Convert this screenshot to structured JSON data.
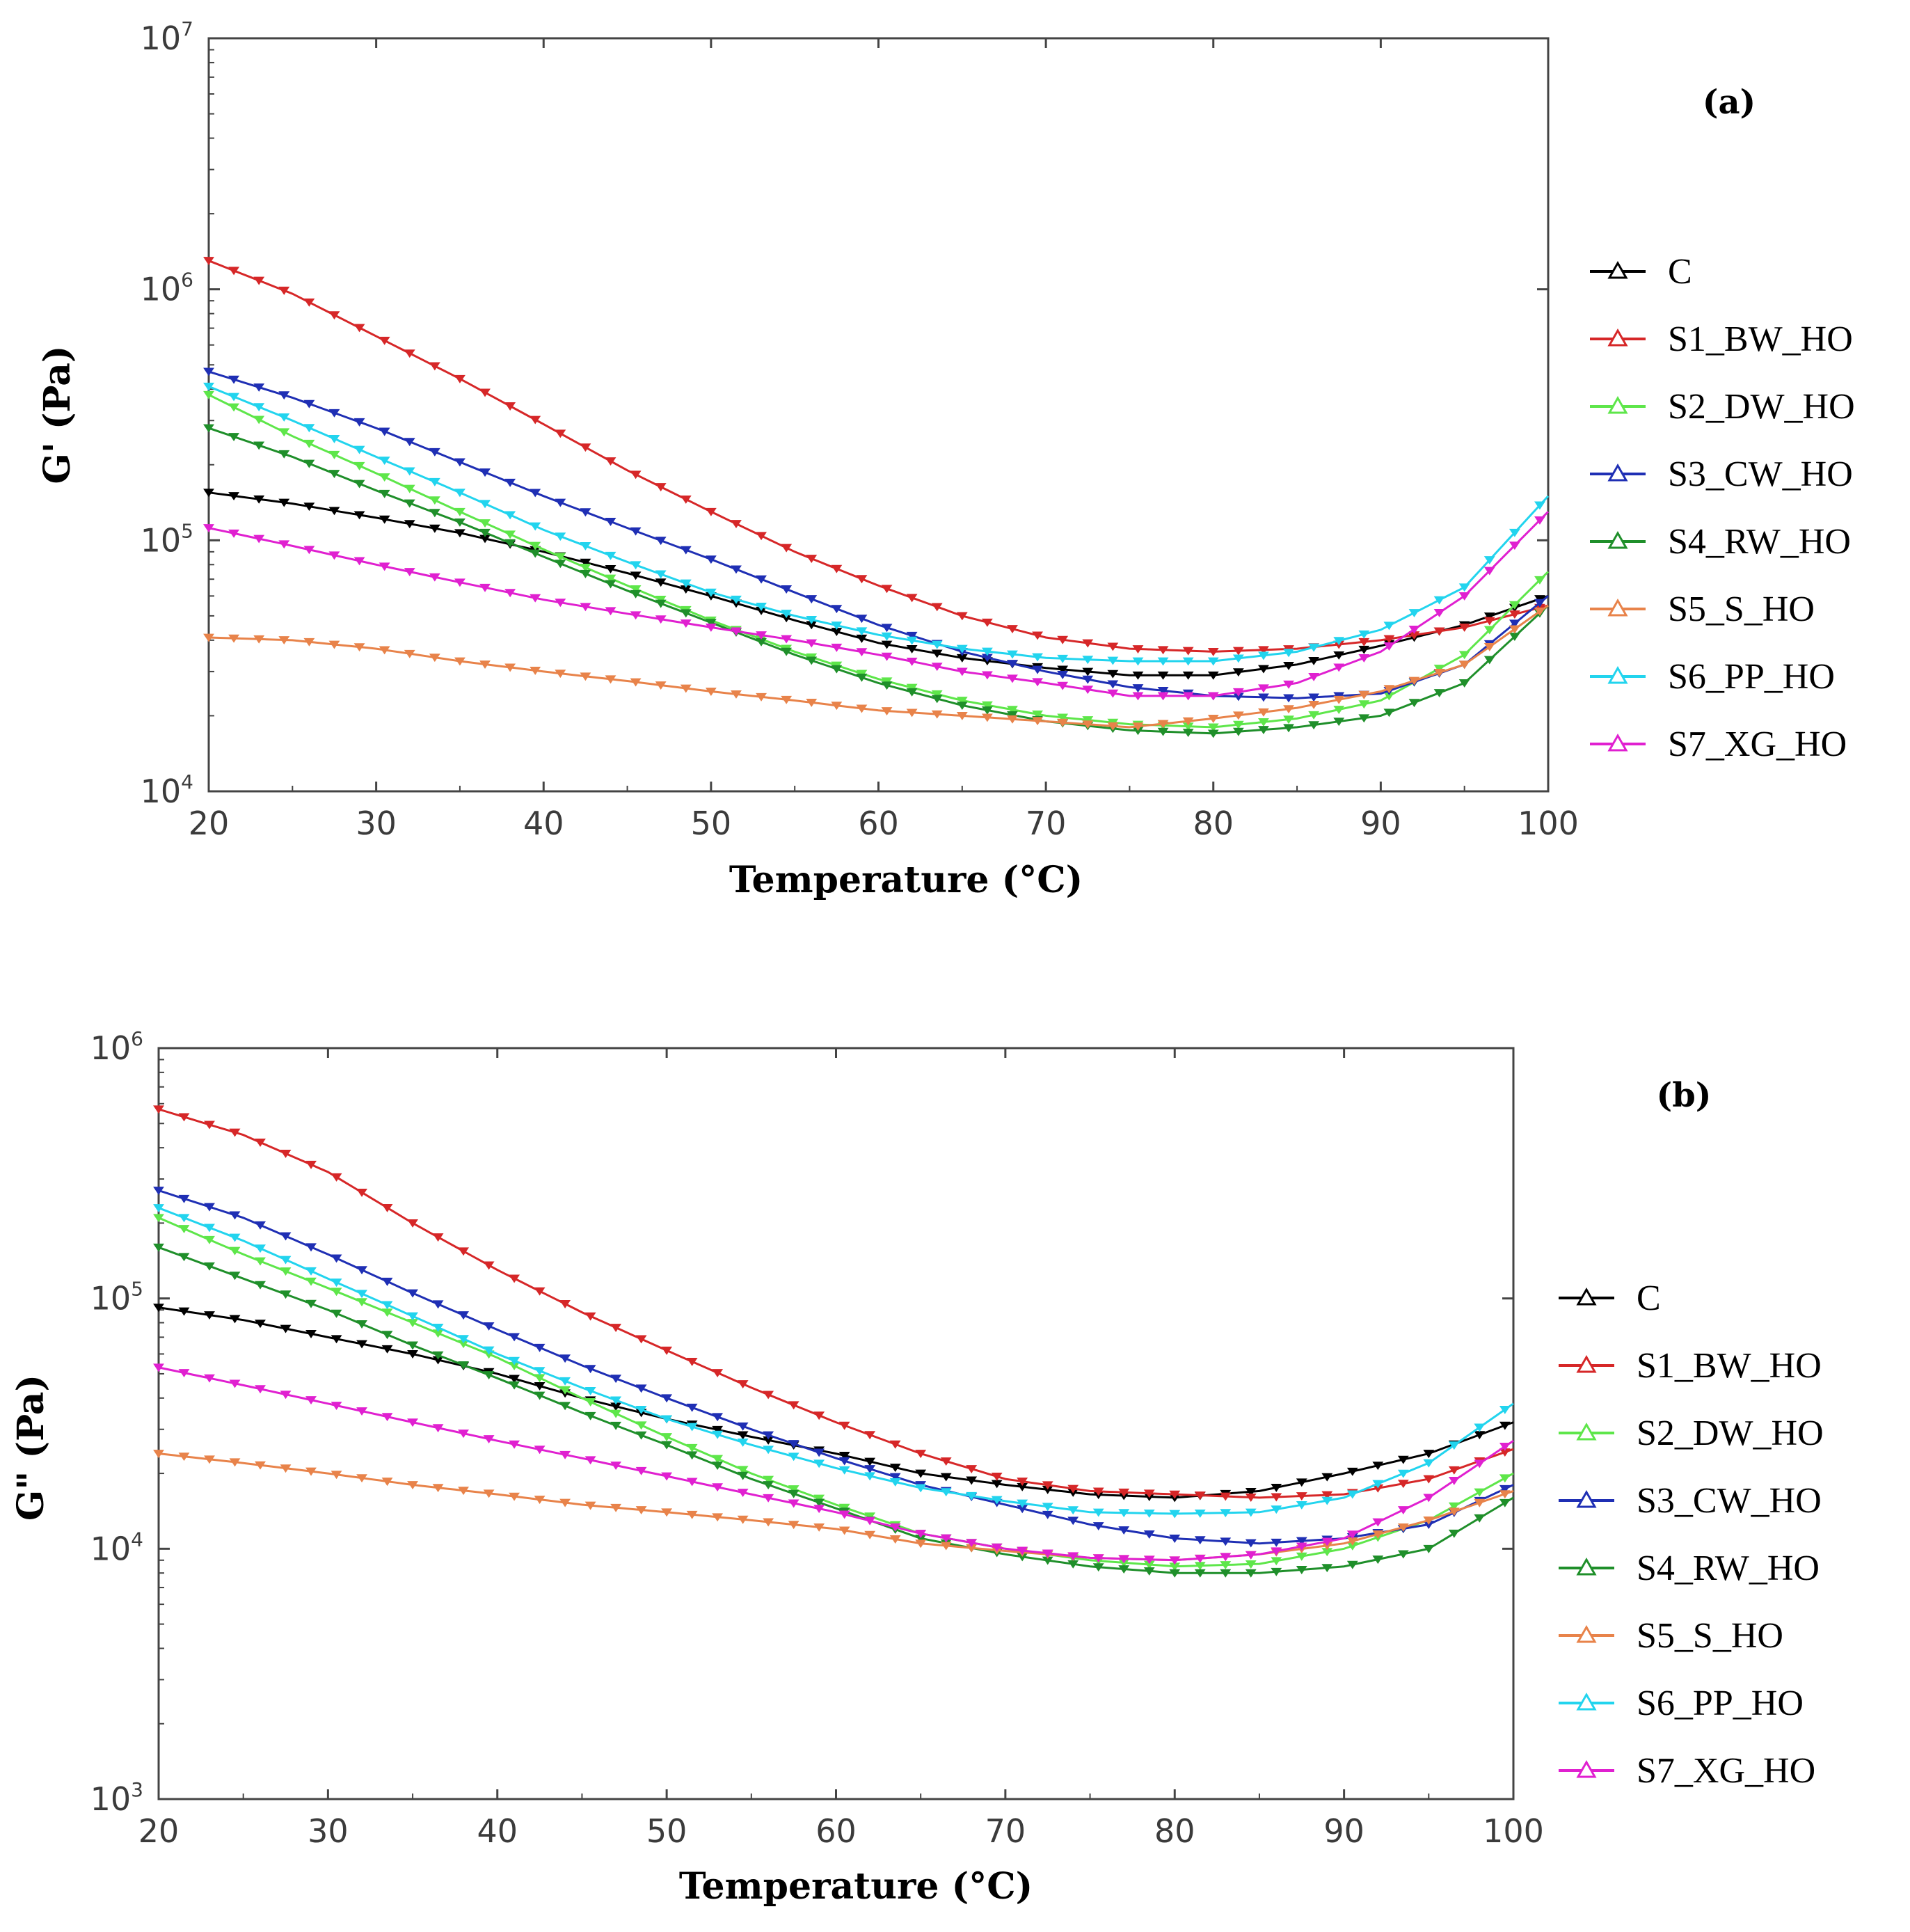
{
  "chart_data": [
    {
      "id": "a",
      "type": "line",
      "panel_label": "(a)",
      "xlabel": "Temperature (°C)",
      "ylabel": "G' (Pa)",
      "xlim": [
        20,
        100
      ],
      "ylim": [
        10000,
        10000000
      ],
      "yscale": "log",
      "xticks": [
        "20",
        "30",
        "40",
        "50",
        "60",
        "70",
        "80",
        "90",
        "100"
      ],
      "yticks": [
        {
          "base": "10",
          "exp": "4"
        },
        {
          "base": "10",
          "exp": "5"
        },
        {
          "base": "10",
          "exp": "6"
        },
        {
          "base": "10",
          "exp": "7"
        }
      ],
      "legend_position": "right",
      "x": [
        20,
        25,
        30,
        35,
        40,
        45,
        50,
        55,
        60,
        65,
        70,
        75,
        80,
        85,
        90,
        95,
        100
      ],
      "series": [
        {
          "name": "C",
          "color": "#000000",
          "values": [
            155000,
            140000,
            123000,
            107000,
            90000,
            74000,
            60000,
            48000,
            39000,
            34000,
            31000,
            29000,
            29000,
            32000,
            38000,
            46000,
            60000
          ]
        },
        {
          "name": "S1_BW_HO",
          "color": "#d62728",
          "values": [
            1300000,
            960000,
            650000,
            440000,
            290000,
            190000,
            130000,
            90000,
            66000,
            50000,
            41000,
            37000,
            36000,
            37000,
            40000,
            45000,
            55000
          ]
        },
        {
          "name": "S2_DW_HO",
          "color": "#5ee64a",
          "values": [
            380000,
            260000,
            185000,
            130000,
            92000,
            66000,
            48000,
            36000,
            28000,
            23000,
            20000,
            18500,
            18000,
            19500,
            23000,
            35000,
            75000
          ]
        },
        {
          "name": "S3_CW_HO",
          "color": "#1f2fb4",
          "values": [
            470000,
            370000,
            280000,
            205000,
            150000,
            112000,
            84000,
            62000,
            46000,
            36000,
            30000,
            26000,
            24000,
            23500,
            24500,
            32000,
            60000
          ]
        },
        {
          "name": "S4_RW_HO",
          "color": "#1f8f2a",
          "values": [
            280000,
            215000,
            158000,
            118000,
            86000,
            63000,
            47000,
            35000,
            27000,
            22000,
            19000,
            17500,
            17000,
            18000,
            20000,
            27000,
            55000
          ]
        },
        {
          "name": "S5_S_HO",
          "color": "#e8834a",
          "values": [
            41000,
            40000,
            37000,
            33000,
            30000,
            27500,
            25000,
            23000,
            21000,
            20000,
            19000,
            18000,
            19500,
            21500,
            25000,
            32000,
            55000
          ]
        },
        {
          "name": "S6_PP_HO",
          "color": "#22d4ee",
          "values": [
            410000,
            300000,
            215000,
            155000,
            110000,
            82000,
            62000,
            50000,
            42000,
            37000,
            34000,
            33000,
            33000,
            36000,
            44000,
            65000,
            150000
          ]
        },
        {
          "name": "S7_XG_HO",
          "color": "#e020d0",
          "values": [
            112000,
            95000,
            80000,
            68000,
            58000,
            51000,
            45000,
            40000,
            35000,
            30000,
            27000,
            24000,
            24000,
            27000,
            36000,
            60000,
            130000
          ]
        }
      ]
    },
    {
      "id": "b",
      "type": "line",
      "panel_label": "(b)",
      "xlabel": "Temperature (°C)",
      "ylabel": "G\" (Pa)",
      "xlim": [
        20,
        100
      ],
      "ylim": [
        1000,
        1000000
      ],
      "yscale": "log",
      "xticks": [
        "20",
        "30",
        "40",
        "50",
        "60",
        "70",
        "80",
        "90",
        "100"
      ],
      "yticks": [
        {
          "base": "10",
          "exp": "3"
        },
        {
          "base": "10",
          "exp": "4"
        },
        {
          "base": "10",
          "exp": "5"
        },
        {
          "base": "10",
          "exp": "6"
        }
      ],
      "legend_position": "right",
      "x": [
        20,
        25,
        30,
        35,
        40,
        45,
        50,
        55,
        60,
        65,
        70,
        75,
        80,
        85,
        90,
        95,
        100
      ],
      "series": [
        {
          "name": "C",
          "color": "#000000",
          "values": [
            92000,
            82000,
            70000,
            60000,
            50000,
            40000,
            33000,
            28000,
            24000,
            20000,
            18000,
            16500,
            16000,
            17000,
            20000,
            24000,
            32000
          ]
        },
        {
          "name": "S1_BW_HO",
          "color": "#d62728",
          "values": [
            570000,
            450000,
            320000,
            200000,
            130000,
            88000,
            62000,
            44000,
            32000,
            24000,
            19000,
            17000,
            16500,
            16000,
            16500,
            19000,
            25000
          ]
        },
        {
          "name": "S2_DW_HO",
          "color": "#5ee64a",
          "values": [
            210000,
            150000,
            110000,
            80000,
            58000,
            40000,
            28000,
            20000,
            15000,
            11500,
            10000,
            9000,
            8500,
            8700,
            10000,
            13000,
            20000
          ]
        },
        {
          "name": "S3_CW_HO",
          "color": "#1f2fb4",
          "values": [
            270000,
            210000,
            150000,
            105000,
            75000,
            54000,
            40000,
            30000,
            23000,
            18000,
            15000,
            12500,
            11000,
            10500,
            11000,
            12500,
            18000
          ]
        },
        {
          "name": "S4_RW_HO",
          "color": "#1f8f2a",
          "values": [
            160000,
            120000,
            90000,
            65000,
            48000,
            35000,
            26000,
            19000,
            14500,
            11000,
            9500,
            8500,
            8000,
            8000,
            8500,
            10000,
            16000
          ]
        },
        {
          "name": "S5_S_HO",
          "color": "#e8834a",
          "values": [
            24000,
            22000,
            20000,
            18000,
            16500,
            15000,
            14000,
            13000,
            12000,
            10500,
            9800,
            9200,
            9000,
            9500,
            10500,
            13000,
            17000
          ]
        },
        {
          "name": "S6_PP_HO",
          "color": "#22d4ee",
          "values": [
            230000,
            170000,
            120000,
            85000,
            60000,
            44000,
            33000,
            26000,
            21000,
            17500,
            15500,
            14000,
            13800,
            14000,
            16000,
            22000,
            38000
          ]
        },
        {
          "name": "S7_XG_HO",
          "color": "#e020d0",
          "values": [
            53000,
            45000,
            38000,
            32000,
            27000,
            23000,
            19500,
            16500,
            14000,
            11500,
            10000,
            9200,
            9000,
            9500,
            11000,
            16000,
            27000
          ]
        }
      ]
    }
  ]
}
